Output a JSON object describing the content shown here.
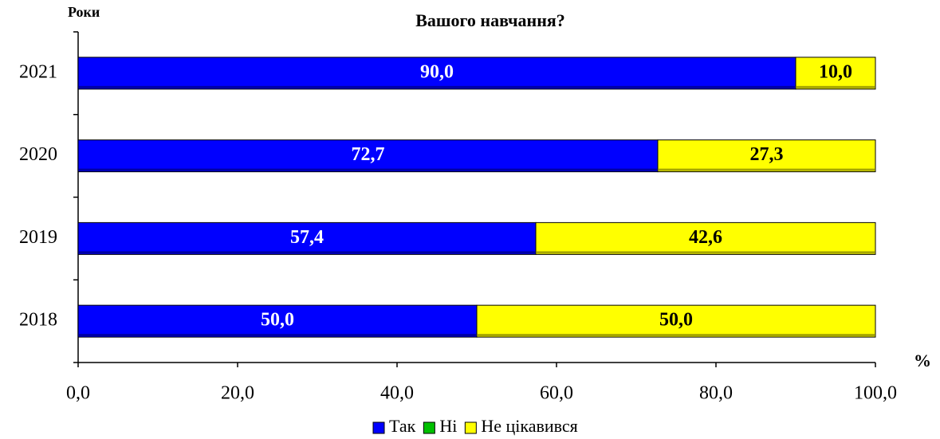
{
  "chart_data": {
    "type": "stacked_barh",
    "title": "Вашого навчання?",
    "y_label": "Роки",
    "x_label": "%",
    "categories": [
      "2021",
      "2020",
      "2019",
      "2018"
    ],
    "series": [
      {
        "name": "Так",
        "color": "#0000ff",
        "values": [
          90.0,
          72.7,
          57.4,
          50.0
        ],
        "value_labels": [
          "90,0",
          "72,7",
          "57,4",
          "50,0"
        ]
      },
      {
        "name": "Ні",
        "color": "#00c000",
        "values": [
          0,
          0,
          0,
          0
        ]
      },
      {
        "name": "Не цікавився",
        "color": "#ffff00",
        "values": [
          10.0,
          27.3,
          42.6,
          50.0
        ],
        "value_labels": [
          "10,0",
          "27,3",
          "42,6",
          "50,0"
        ]
      }
    ],
    "xlim": [
      0,
      100
    ],
    "xticks": [
      {
        "value": 0,
        "label": "0,0"
      },
      {
        "value": 20,
        "label": "20,0"
      },
      {
        "value": 40,
        "label": "40,0"
      },
      {
        "value": 60,
        "label": "60,0"
      },
      {
        "value": 80,
        "label": "80,0"
      },
      {
        "value": 100,
        "label": "100,0"
      }
    ]
  }
}
